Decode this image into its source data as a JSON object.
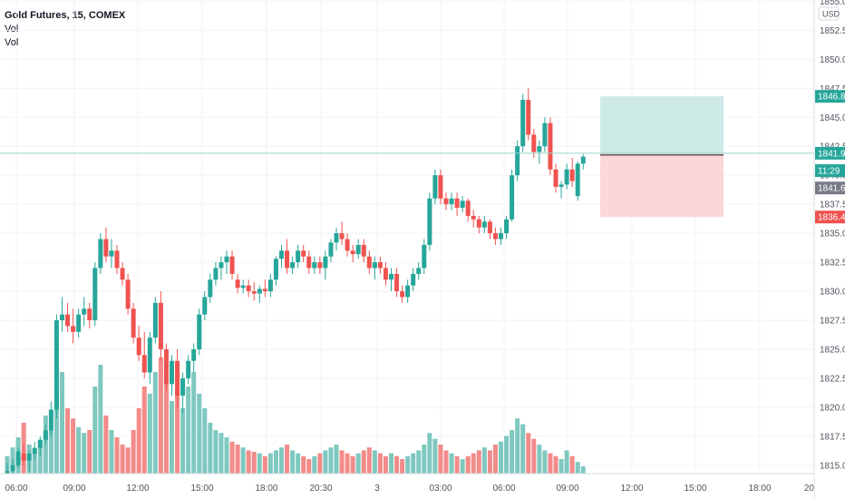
{
  "legend": {
    "symbol": "Gold Futures, 15, COMEX",
    "vol1": "Vol",
    "vol2": "Vol"
  },
  "price_axis": {
    "unit": "USD",
    "ticks": [
      "1855.0",
      "1852.5",
      "1850.0",
      "1847.5",
      "1845.0",
      "1842.5",
      "1840.0",
      "1837.5",
      "1835.0",
      "1832.5",
      "1830.0",
      "1827.5",
      "1825.0",
      "1822.5",
      "1820.0",
      "1817.5",
      "1815.0"
    ],
    "tags": [
      {
        "label": "1846.8",
        "value": 1846.8,
        "color": "#26a69a"
      },
      {
        "label": "1841.9",
        "value": 1841.9,
        "color": "#26a69a"
      },
      {
        "label": "11:29",
        "value": 1840.4,
        "color": "#26a69a"
      },
      {
        "label": "1841.6",
        "value": 1838.9,
        "color": "#787b86"
      },
      {
        "label": "1836.4",
        "value": 1836.4,
        "color": "#ef5350"
      }
    ]
  },
  "time_axis": {
    "ticks": [
      "06:00",
      "09:00",
      "12:00",
      "15:00",
      "18:00",
      "20:30",
      "3",
      "03:00",
      "06:00",
      "09:00",
      "12:00",
      "15:00",
      "18:00",
      "20"
    ]
  },
  "colors": {
    "up": "#26a69a",
    "down": "#ef5350",
    "vol_up": "#7fc8c0",
    "vol_down": "#f28b89",
    "grid": "#f0f3fa",
    "profit_zone": "#cdeae7",
    "loss_zone": "#fbd7d7"
  },
  "chart_data": {
    "type": "candlestick",
    "title": "Gold Futures, 15, COMEX",
    "ylim": [
      1813.5,
      1855.5
    ],
    "position": {
      "entry": 1841.9,
      "target": 1846.8,
      "stop": 1836.4
    },
    "candles": [
      [
        1814.0,
        1815.2,
        1813.8,
        1814.5
      ],
      [
        1814.5,
        1815.5,
        1814.0,
        1815.0
      ],
      [
        1815.0,
        1816.5,
        1814.8,
        1816.2
      ],
      [
        1816.0,
        1816.8,
        1815.0,
        1815.4
      ],
      [
        1815.4,
        1816.2,
        1814.5,
        1816.0
      ],
      [
        1816.0,
        1817.0,
        1815.5,
        1816.5
      ],
      [
        1816.5,
        1817.5,
        1815.8,
        1817.2
      ],
      [
        1817.2,
        1818.5,
        1816.8,
        1818.0
      ],
      [
        1818.0,
        1820.5,
        1817.5,
        1819.8
      ],
      [
        1819.8,
        1828.0,
        1819.0,
        1827.5
      ],
      [
        1827.5,
        1829.5,
        1826.5,
        1828.0
      ],
      [
        1828.0,
        1829.0,
        1826.5,
        1827.0
      ],
      [
        1827.0,
        1828.5,
        1825.5,
        1826.5
      ],
      [
        1826.5,
        1828.5,
        1826.0,
        1828.0
      ],
      [
        1828.0,
        1829.5,
        1827.0,
        1828.5
      ],
      [
        1828.5,
        1829.0,
        1826.8,
        1827.5
      ],
      [
        1827.5,
        1832.5,
        1827.0,
        1832.0
      ],
      [
        1832.0,
        1835.0,
        1831.5,
        1834.5
      ],
      [
        1834.5,
        1835.5,
        1832.5,
        1833.0
      ],
      [
        1833.0,
        1834.5,
        1832.0,
        1833.5
      ],
      [
        1833.5,
        1834.0,
        1831.5,
        1832.0
      ],
      [
        1832.0,
        1832.5,
        1830.5,
        1831.0
      ],
      [
        1831.0,
        1831.5,
        1828.0,
        1828.5
      ],
      [
        1828.5,
        1829.0,
        1825.5,
        1826.0
      ],
      [
        1826.0,
        1827.0,
        1824.0,
        1824.5
      ],
      [
        1824.5,
        1826.5,
        1822.5,
        1823.0
      ],
      [
        1823.0,
        1826.5,
        1822.0,
        1826.0
      ],
      [
        1826.0,
        1829.5,
        1825.5,
        1829.0
      ],
      [
        1829.0,
        1830.0,
        1824.0,
        1825.0
      ],
      [
        1825.0,
        1825.5,
        1821.5,
        1822.0
      ],
      [
        1822.0,
        1824.5,
        1821.0,
        1824.0
      ],
      [
        1824.0,
        1825.0,
        1820.0,
        1821.0
      ],
      [
        1821.0,
        1823.0,
        1819.5,
        1822.5
      ],
      [
        1822.5,
        1824.5,
        1822.0,
        1824.0
      ],
      [
        1824.0,
        1825.5,
        1823.0,
        1825.0
      ],
      [
        1825.0,
        1828.5,
        1824.5,
        1828.0
      ],
      [
        1828.0,
        1830.0,
        1827.5,
        1829.5
      ],
      [
        1829.5,
        1831.5,
        1829.0,
        1831.0
      ],
      [
        1831.0,
        1832.5,
        1830.5,
        1832.0
      ],
      [
        1832.0,
        1833.0,
        1831.0,
        1832.5
      ],
      [
        1832.5,
        1833.5,
        1831.5,
        1833.0
      ],
      [
        1833.0,
        1833.5,
        1831.0,
        1831.5
      ],
      [
        1831.0,
        1831.5,
        1829.8,
        1830.3
      ],
      [
        1830.3,
        1831.0,
        1829.8,
        1830.5
      ],
      [
        1830.5,
        1831.0,
        1829.5,
        1830.0
      ],
      [
        1830.0,
        1830.8,
        1829.2,
        1829.8
      ],
      [
        1829.8,
        1830.5,
        1829.0,
        1830.2
      ],
      [
        1830.2,
        1831.0,
        1829.5,
        1830.0
      ],
      [
        1830.0,
        1831.5,
        1829.5,
        1831.0
      ],
      [
        1831.0,
        1833.0,
        1830.5,
        1832.8
      ],
      [
        1832.8,
        1834.0,
        1832.0,
        1833.5
      ],
      [
        1833.5,
        1834.5,
        1831.5,
        1832.0
      ],
      [
        1832.0,
        1833.0,
        1831.5,
        1832.5
      ],
      [
        1832.5,
        1834.0,
        1832.0,
        1833.5
      ],
      [
        1833.5,
        1834.0,
        1832.5,
        1833.0
      ],
      [
        1833.0,
        1833.5,
        1831.5,
        1832.0
      ],
      [
        1832.0,
        1833.0,
        1831.5,
        1832.5
      ],
      [
        1832.5,
        1833.0,
        1831.5,
        1832.0
      ],
      [
        1832.0,
        1833.5,
        1831.0,
        1833.0
      ],
      [
        1833.0,
        1834.5,
        1832.5,
        1834.2
      ],
      [
        1834.2,
        1835.5,
        1833.5,
        1835.0
      ],
      [
        1835.0,
        1836.0,
        1834.0,
        1834.5
      ],
      [
        1834.5,
        1835.0,
        1833.0,
        1833.5
      ],
      [
        1833.5,
        1834.0,
        1832.5,
        1833.2
      ],
      [
        1833.2,
        1834.5,
        1832.8,
        1834.0
      ],
      [
        1834.0,
        1834.5,
        1832.5,
        1833.0
      ],
      [
        1833.0,
        1833.5,
        1831.5,
        1832.0
      ],
      [
        1832.0,
        1833.0,
        1831.0,
        1832.5
      ],
      [
        1832.5,
        1833.0,
        1831.5,
        1832.0
      ],
      [
        1832.0,
        1832.5,
        1830.5,
        1831.0
      ],
      [
        1831.0,
        1832.0,
        1830.0,
        1831.5
      ],
      [
        1831.5,
        1832.0,
        1829.5,
        1830.0
      ],
      [
        1830.0,
        1830.5,
        1829.0,
        1829.5
      ],
      [
        1829.5,
        1831.0,
        1829.0,
        1830.5
      ],
      [
        1830.5,
        1832.0,
        1830.0,
        1831.5
      ],
      [
        1831.5,
        1832.5,
        1831.0,
        1832.0
      ],
      [
        1832.0,
        1834.5,
        1831.5,
        1834.0
      ],
      [
        1834.0,
        1838.5,
        1833.5,
        1838.0
      ],
      [
        1838.0,
        1840.5,
        1837.5,
        1840.0
      ],
      [
        1840.0,
        1840.5,
        1837.5,
        1838.0
      ],
      [
        1838.0,
        1838.5,
        1837.0,
        1837.5
      ],
      [
        1837.5,
        1838.5,
        1837.0,
        1838.0
      ],
      [
        1838.0,
        1838.5,
        1836.5,
        1837.2
      ],
      [
        1837.2,
        1838.2,
        1836.8,
        1837.8
      ],
      [
        1837.8,
        1838.0,
        1836.0,
        1836.5
      ],
      [
        1836.5,
        1837.0,
        1835.5,
        1836.2
      ],
      [
        1836.2,
        1836.5,
        1835.0,
        1835.5
      ],
      [
        1835.5,
        1836.5,
        1835.0,
        1836.0
      ],
      [
        1836.0,
        1836.2,
        1834.5,
        1835.0
      ],
      [
        1835.0,
        1835.5,
        1834.0,
        1834.5
      ],
      [
        1834.5,
        1835.5,
        1834.0,
        1835.0
      ],
      [
        1835.0,
        1836.5,
        1834.5,
        1836.2
      ],
      [
        1836.2,
        1840.5,
        1836.0,
        1840.0
      ],
      [
        1840.0,
        1843.0,
        1839.5,
        1842.5
      ],
      [
        1842.5,
        1847.0,
        1842.0,
        1846.5
      ],
      [
        1846.5,
        1847.5,
        1843.0,
        1843.5
      ],
      [
        1843.5,
        1844.0,
        1841.5,
        1842.0
      ],
      [
        1842.0,
        1843.0,
        1841.0,
        1842.5
      ],
      [
        1842.5,
        1845.0,
        1842.0,
        1844.5
      ],
      [
        1844.5,
        1845.0,
        1840.0,
        1840.5
      ],
      [
        1840.5,
        1841.0,
        1838.5,
        1839.0
      ],
      [
        1839.0,
        1839.5,
        1838.0,
        1839.2
      ],
      [
        1839.2,
        1841.0,
        1838.8,
        1840.5
      ],
      [
        1840.5,
        1841.5,
        1839.0,
        1839.5
      ],
      [
        1838.2,
        1841.2,
        1837.8,
        1841.0
      ],
      [
        1841.0,
        1841.8,
        1840.5,
        1841.6
      ]
    ],
    "volume": [
      12,
      18,
      25,
      35,
      20,
      15,
      22,
      40,
      30,
      55,
      70,
      45,
      38,
      32,
      28,
      30,
      60,
      75,
      40,
      30,
      25,
      20,
      18,
      30,
      45,
      60,
      55,
      70,
      80,
      65,
      50,
      55,
      45,
      60,
      70,
      55,
      45,
      35,
      30,
      28,
      25,
      22,
      20,
      18,
      16,
      15,
      14,
      12,
      14,
      16,
      18,
      20,
      16,
      14,
      12,
      10,
      12,
      14,
      16,
      18,
      20,
      16,
      14,
      12,
      14,
      16,
      18,
      16,
      14,
      12,
      14,
      12,
      10,
      12,
      14,
      16,
      20,
      28,
      24,
      20,
      16,
      14,
      12,
      10,
      12,
      14,
      16,
      18,
      16,
      20,
      22,
      26,
      30,
      38,
      34,
      28,
      24,
      20,
      16,
      14,
      12,
      10,
      16,
      12,
      8,
      5
    ],
    "volume_ylim": [
      0,
      100
    ]
  }
}
